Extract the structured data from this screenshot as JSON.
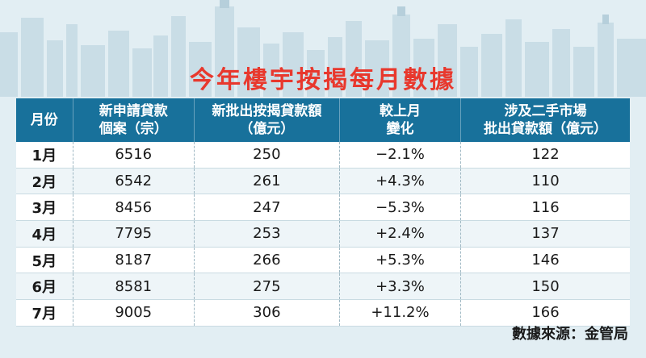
{
  "title": "今年樓宇按揭每月數據",
  "colors": {
    "title": "#e8382d",
    "header_bg": "#18719b",
    "background": "#e2eef3"
  },
  "chart_data": {
    "type": "table",
    "title": "今年樓宇按揭每月數據",
    "columns": [
      {
        "line1": "月份",
        "line2": ""
      },
      {
        "line1": "新申請貸款",
        "line2": "個案（宗）"
      },
      {
        "line1": "新批出按揭貸款額",
        "line2": "（億元）"
      },
      {
        "line1": "較上月",
        "line2": "變化"
      },
      {
        "line1": "涉及二手市場",
        "line2": "批出貸款額（億元）"
      }
    ],
    "rows": [
      [
        "1月",
        "6516",
        "250",
        "−2.1%",
        "122"
      ],
      [
        "2月",
        "6542",
        "261",
        "+4.3%",
        "110"
      ],
      [
        "3月",
        "8456",
        "247",
        "−5.3%",
        "116"
      ],
      [
        "4月",
        "7795",
        "253",
        "+2.4%",
        "137"
      ],
      [
        "5月",
        "8187",
        "266",
        "+5.3%",
        "146"
      ],
      [
        "6月",
        "8581",
        "275",
        "+3.3%",
        "150"
      ],
      [
        "7月",
        "9005",
        "306",
        "+11.2%",
        "166"
      ]
    ]
  },
  "source": "數據來源：金管局"
}
